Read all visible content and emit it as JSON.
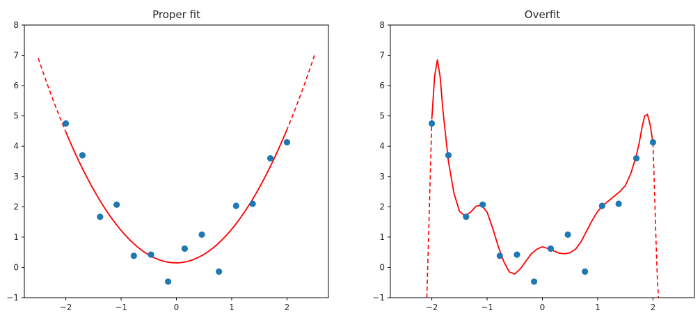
{
  "chart_data": [
    {
      "type": "scatter",
      "title": "Proper fit",
      "xlabel": "",
      "ylabel": "",
      "xlim": [
        -2.75,
        2.75
      ],
      "ylim": [
        -1,
        8
      ],
      "xticks": [
        -2,
        -1,
        0,
        1,
        2
      ],
      "xtick_labels": [
        "−2",
        "−1",
        "0",
        "1",
        "2"
      ],
      "yticks": [
        -1,
        0,
        1,
        2,
        3,
        4,
        5,
        6,
        7,
        8
      ],
      "ytick_labels": [
        "−1",
        "0",
        "1",
        "2",
        "3",
        "4",
        "5",
        "6",
        "7",
        "8"
      ],
      "grid": false,
      "point_color": "#1f77b4",
      "line_color": "#ff0000",
      "points": {
        "x": [
          -2.0,
          -1.7,
          -1.38,
          -1.08,
          -0.77,
          -0.46,
          -0.15,
          0.15,
          0.46,
          0.77,
          1.08,
          1.38,
          1.7,
          2.0
        ],
        "y": [
          4.75,
          3.7,
          1.67,
          2.07,
          0.38,
          0.42,
          -0.47,
          0.62,
          1.08,
          -0.14,
          2.03,
          2.1,
          3.6,
          4.13
        ]
      },
      "fit": {
        "kind": "polynomial",
        "coeffs": [
          0.15,
          0.02,
          1.09
        ],
        "solid_range": [
          -2.0,
          2.0
        ],
        "dashed_range": [
          -2.5,
          2.5
        ]
      }
    },
    {
      "type": "scatter",
      "title": "Overfit",
      "xlabel": "",
      "ylabel": "",
      "xlim": [
        -2.75,
        2.75
      ],
      "ylim": [
        -1,
        8
      ],
      "xticks": [
        -2,
        -1,
        0,
        1,
        2
      ],
      "xtick_labels": [
        "−2",
        "−1",
        "0",
        "1",
        "2"
      ],
      "yticks": [
        -1,
        0,
        1,
        2,
        3,
        4,
        5,
        6,
        7,
        8
      ],
      "ytick_labels": [
        "−1",
        "0",
        "1",
        "2",
        "3",
        "4",
        "5",
        "6",
        "7",
        "8"
      ],
      "grid": false,
      "point_color": "#1f77b4",
      "line_color": "#ff0000",
      "points": {
        "x": [
          -2.0,
          -1.7,
          -1.38,
          -1.08,
          -0.77,
          -0.46,
          -0.15,
          0.15,
          0.46,
          0.77,
          1.08,
          1.38,
          1.7,
          2.0
        ],
        "y": [
          4.75,
          3.7,
          1.67,
          2.07,
          0.38,
          0.42,
          -0.47,
          0.62,
          1.08,
          -0.14,
          2.03,
          2.1,
          3.6,
          4.13
        ]
      },
      "fit": {
        "kind": "curve",
        "solid": {
          "x": [
            -2.0,
            -1.95,
            -1.9,
            -1.85,
            -1.8,
            -1.7,
            -1.6,
            -1.5,
            -1.4,
            -1.3,
            -1.2,
            -1.1,
            -1.0,
            -0.9,
            -0.8,
            -0.7,
            -0.6,
            -0.5,
            -0.4,
            -0.3,
            -0.2,
            -0.1,
            0.0,
            0.1,
            0.2,
            0.3,
            0.4,
            0.5,
            0.6,
            0.7,
            0.8,
            0.9,
            1.0,
            1.1,
            1.2,
            1.3,
            1.4,
            1.5,
            1.6,
            1.7,
            1.75,
            1.8,
            1.85,
            1.9,
            1.95,
            2.0
          ],
          "y": [
            4.9,
            6.3,
            6.85,
            6.3,
            5.2,
            3.5,
            2.45,
            1.85,
            1.7,
            1.82,
            2.02,
            2.05,
            1.82,
            1.3,
            0.7,
            0.2,
            -0.15,
            -0.22,
            -0.05,
            0.2,
            0.45,
            0.6,
            0.68,
            0.62,
            0.55,
            0.47,
            0.45,
            0.48,
            0.6,
            0.85,
            1.2,
            1.55,
            1.85,
            2.05,
            2.2,
            2.35,
            2.5,
            2.7,
            3.1,
            3.7,
            4.1,
            4.6,
            5.0,
            5.05,
            4.7,
            4.1
          ]
        },
        "dashed_left": {
          "x": [
            -2.09,
            -2.07,
            -2.05,
            -2.03,
            -2.01,
            -2.0
          ],
          "y": [
            -1,
            0.3,
            1.6,
            2.9,
            4.2,
            4.9
          ]
        },
        "dashed_right": {
          "x": [
            2.0,
            2.02,
            2.04,
            2.06,
            2.08,
            2.1
          ],
          "y": [
            4.1,
            3.0,
            1.8,
            0.6,
            -0.4,
            -1
          ]
        }
      }
    }
  ]
}
